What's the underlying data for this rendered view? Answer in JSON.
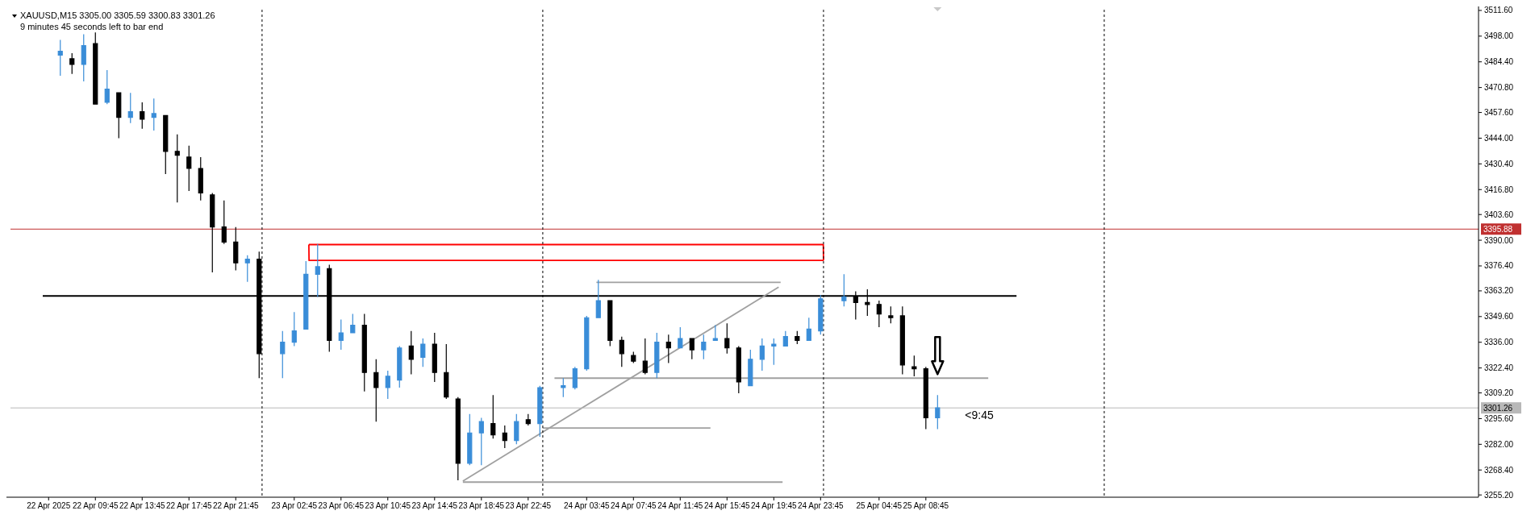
{
  "chart_data": {
    "type": "candlestick",
    "title": "XAUUSD,M15  3305.00 3305.59 3300.83 3301.26",
    "subtitle": "9 minutes 45 seconds left to bar end",
    "x": [
      "2025-04-22T06:45",
      "2025-04-22T07:45",
      "2025-04-22T08:45",
      "2025-04-22T09:45",
      "2025-04-22T10:45",
      "2025-04-22T11:45",
      "2025-04-22T12:45",
      "2025-04-22T13:45",
      "2025-04-22T14:45",
      "2025-04-22T15:45",
      "2025-04-22T16:45",
      "2025-04-22T17:45",
      "2025-04-22T18:45",
      "2025-04-22T19:45",
      "2025-04-22T20:45",
      "2025-04-22T21:45",
      "2025-04-22T22:45",
      "2025-04-22T23:45",
      "2025-04-23T01:45",
      "2025-04-23T02:45",
      "2025-04-23T03:45",
      "2025-04-23T04:45",
      "2025-04-23T05:45",
      "2025-04-23T06:45",
      "2025-04-23T07:45",
      "2025-04-23T08:45",
      "2025-04-23T09:45",
      "2025-04-23T10:45",
      "2025-04-23T11:45",
      "2025-04-23T12:45",
      "2025-04-23T13:45",
      "2025-04-23T14:45",
      "2025-04-23T15:45",
      "2025-04-23T16:45",
      "2025-04-23T17:45",
      "2025-04-23T18:45",
      "2025-04-23T19:45",
      "2025-04-23T20:45",
      "2025-04-23T21:45",
      "2025-04-23T22:45",
      "2025-04-23T23:45",
      "2025-04-24T01:45",
      "2025-04-24T02:45",
      "2025-04-24T03:45",
      "2025-04-24T04:45",
      "2025-04-24T05:45",
      "2025-04-24T06:45",
      "2025-04-24T07:45",
      "2025-04-24T08:45",
      "2025-04-24T09:45",
      "2025-04-24T10:45",
      "2025-04-24T11:45",
      "2025-04-24T12:45",
      "2025-04-24T13:45",
      "2025-04-24T14:45",
      "2025-04-24T15:45",
      "2025-04-24T16:45",
      "2025-04-24T17:45",
      "2025-04-24T18:45",
      "2025-04-24T19:45",
      "2025-04-24T20:45",
      "2025-04-24T21:45",
      "2025-04-24T22:45",
      "2025-04-24T23:45",
      "2025-04-25T01:45",
      "2025-04-25T02:45",
      "2025-04-25T03:45",
      "2025-04-25T04:45",
      "2025-04-25T05:45",
      "2025-04-25T06:45",
      "2025-04-25T07:45",
      "2025-04-25T08:45",
      "2025-04-25T09:45"
    ],
    "ohlc": [
      [
        3488,
        3496,
        3477,
        3490
      ],
      [
        3486,
        3489,
        3478,
        3483
      ],
      [
        3483,
        3499,
        3474,
        3493
      ],
      [
        3494,
        3500,
        3462,
        3462
      ],
      [
        3463,
        3480,
        3462,
        3470
      ],
      [
        3468,
        3468,
        3444,
        3455
      ],
      [
        3455,
        3468,
        3452,
        3458
      ],
      [
        3458,
        3463,
        3449,
        3454
      ],
      [
        3455,
        3465,
        3448,
        3457
      ],
      [
        3456,
        3456,
        3425,
        3437
      ],
      [
        3437,
        3446,
        3410,
        3435
      ],
      [
        3434,
        3440,
        3416,
        3428
      ],
      [
        3428,
        3434,
        3411,
        3415
      ],
      [
        3414,
        3415,
        3373,
        3397
      ],
      [
        3397,
        3411,
        3388,
        3389
      ],
      [
        3389,
        3397,
        3374,
        3378
      ],
      [
        3378,
        3382,
        3368,
        3380
      ],
      [
        3380,
        3384,
        3317,
        3330
      ],
      [
        3330,
        3342,
        3317,
        3336
      ],
      [
        3336,
        3352,
        3334,
        3342
      ],
      [
        3343,
        3379,
        3343,
        3372
      ],
      [
        3372,
        3388,
        3360,
        3376
      ],
      [
        3375,
        3377,
        3331,
        3337
      ],
      [
        3337,
        3348,
        3332,
        3341
      ],
      [
        3341,
        3351,
        3341,
        3345
      ],
      [
        3345,
        3351,
        3310,
        3320
      ],
      [
        3320,
        3327,
        3294,
        3312
      ],
      [
        3312,
        3321,
        3306,
        3318
      ],
      [
        3316,
        3334,
        3312,
        3333
      ],
      [
        3334,
        3342,
        3319,
        3327
      ],
      [
        3328,
        3338,
        3323,
        3335
      ],
      [
        3335,
        3341,
        3315,
        3320
      ],
      [
        3320,
        3335,
        3306,
        3307
      ],
      [
        3306,
        3307,
        3263,
        3272
      ],
      [
        3272,
        3298,
        3271,
        3288
      ],
      [
        3288,
        3296,
        3271,
        3294
      ],
      [
        3293,
        3308,
        3285,
        3287
      ],
      [
        3288,
        3292,
        3280,
        3284
      ],
      [
        3284,
        3298,
        3282,
        3294
      ],
      [
        3295,
        3298,
        3292,
        3293
      ],
      [
        3293,
        3313,
        3286,
        3312
      ],
      [
        3312,
        3317,
        3307,
        3313
      ],
      [
        3312,
        3323,
        3311,
        3322
      ],
      [
        3322,
        3350,
        3321,
        3349
      ],
      [
        3349,
        3369,
        3349,
        3358
      ],
      [
        3358,
        3358,
        3334,
        3337
      ],
      [
        3337,
        3339,
        3323,
        3330
      ],
      [
        3329,
        3331,
        3325,
        3326
      ],
      [
        3326,
        3338,
        3319,
        3320
      ],
      [
        3320,
        3341,
        3317,
        3336
      ],
      [
        3336,
        3340,
        3325,
        3333
      ],
      [
        3333,
        3344,
        3333,
        3338
      ],
      [
        3338,
        3338,
        3327,
        3332
      ],
      [
        3332,
        3340,
        3327,
        3336
      ],
      [
        3337,
        3345,
        3337,
        3338
      ],
      [
        3338,
        3346,
        3330,
        3333
      ],
      [
        3333,
        3334,
        3309,
        3315
      ],
      [
        3313,
        3332,
        3313,
        3327
      ],
      [
        3327,
        3338,
        3321,
        3334
      ],
      [
        3334,
        3338,
        3324,
        3335
      ],
      [
        3334,
        3342,
        3334,
        3339
      ],
      [
        3339,
        3342,
        3335,
        3337
      ],
      [
        3337,
        3349,
        3337,
        3343
      ],
      [
        3342,
        3361,
        3340,
        3359
      ],
      [
        3358,
        3372,
        3355,
        3360
      ],
      [
        3360,
        3363,
        3348,
        3357
      ],
      [
        3357,
        3364,
        3350,
        3356
      ],
      [
        3356,
        3358,
        3344,
        3351
      ],
      [
        3350,
        3355,
        3346,
        3349
      ],
      [
        3350,
        3355,
        3319,
        3324
      ],
      [
        3323,
        3329,
        3318,
        3322
      ],
      [
        3322,
        3323,
        3290,
        3296
      ],
      [
        3296,
        3308,
        3290,
        3301.26
      ]
    ],
    "colors": [
      "#3a8dd8",
      "#000000",
      "#3a8dd8",
      "#000000",
      "#3a8dd8",
      "#000000",
      "#3a8dd8",
      "#000000",
      "#3a8dd8",
      "#000000",
      "#000000",
      "#000000",
      "#000000",
      "#000000",
      "#000000",
      "#000000",
      "#3a8dd8",
      "#000000",
      "#3a8dd8",
      "#3a8dd8",
      "#3a8dd8",
      "#3a8dd8",
      "#000000",
      "#3a8dd8",
      "#3a8dd8",
      "#000000",
      "#000000",
      "#3a8dd8",
      "#3a8dd8",
      "#000000",
      "#3a8dd8",
      "#000000",
      "#000000",
      "#000000",
      "#3a8dd8",
      "#3a8dd8",
      "#000000",
      "#000000",
      "#3a8dd8",
      "#000000",
      "#3a8dd8",
      "#3a8dd8",
      "#3a8dd8",
      "#3a8dd8",
      "#3a8dd8",
      "#000000",
      "#000000",
      "#000000",
      "#000000",
      "#3a8dd8",
      "#000000",
      "#3a8dd8",
      "#000000",
      "#3a8dd8",
      "#3a8dd8",
      "#000000",
      "#000000",
      "#3a8dd8",
      "#3a8dd8",
      "#3a8dd8",
      "#3a8dd8",
      "#000000",
      "#3a8dd8",
      "#3a8dd8",
      "#3a8dd8",
      "#000000",
      "#000000",
      "#000000",
      "#000000",
      "#000000",
      "#000000",
      "#000000",
      "#3a8dd8"
    ],
    "series": [
      {
        "type": "line",
        "color": "#000000",
        "x": [
          "2025-04-22T05:15",
          "2025-04-25T16:30"
        ],
        "values": [
          3360.5,
          3360.5
        ]
      },
      {
        "type": "line",
        "color": "#ff0000",
        "x": [
          "2025-04-23T04:00",
          "2025-04-24T23:59",
          "2025-04-25T00:00"
        ],
        "values": [
          3387.7,
          3387.7,
          3379.3
        ]
      },
      {
        "type": "line",
        "color": "#ff0000",
        "x": [
          "2025-04-23T04:00",
          "2025-04-23T04:01",
          "2025-04-25T00:00"
        ],
        "values": [
          3387.7,
          3379.3,
          3379.3
        ]
      },
      {
        "type": "line",
        "color": "#a0a0a0",
        "x": [
          "2025-04-23T17:10",
          "2025-04-24T20:10"
        ],
        "values": [
          3262.5,
          3365.2
        ]
      },
      {
        "type": "line",
        "color": "#a0a0a0",
        "x": [
          "2025-04-24T04:35",
          "2025-04-24T20:20"
        ],
        "values": [
          3367.7,
          3367.7
        ]
      },
      {
        "type": "line",
        "color": "#a0a0a0",
        "x": [
          "2025-04-24T01:00",
          "2025-04-25T14:05"
        ],
        "values": [
          3317,
          3317
        ]
      },
      {
        "type": "line",
        "color": "#a0a0a0",
        "x": [
          "2025-04-23T23:59",
          "2025-04-24T14:20"
        ],
        "values": [
          3290.6,
          3290.6
        ]
      },
      {
        "type": "line",
        "color": "#a0a0a0",
        "x": [
          "2025-04-23T17:10",
          "2025-04-24T20:30"
        ],
        "values": [
          3262,
          3262
        ]
      }
    ],
    "xlim": [
      "2025-04-22T05:15",
      "2025-04-27T08:00"
    ],
    "xticks": [
      {
        "value": "2025-04-22T05:45",
        "label": "22 Apr 2025"
      },
      {
        "value": "2025-04-22T09:45",
        "label": "22 Apr 09:45"
      },
      {
        "value": "2025-04-22T13:45",
        "label": "22 Apr 13:45"
      },
      {
        "value": "2025-04-22T17:45",
        "label": "22 Apr 17:45"
      },
      {
        "value": "2025-04-22T21:45",
        "label": "22 Apr 21:45"
      },
      {
        "value": "2025-04-23T02:45",
        "label": "23 Apr 02:45"
      },
      {
        "value": "2025-04-23T06:45",
        "label": "23 Apr 06:45"
      },
      {
        "value": "2025-04-23T10:45",
        "label": "23 Apr 10:45"
      },
      {
        "value": "2025-04-23T14:45",
        "label": "23 Apr 14:45"
      },
      {
        "value": "2025-04-23T18:45",
        "label": "23 Apr 18:45"
      },
      {
        "value": "2025-04-23T22:45",
        "label": "23 Apr 22:45"
      },
      {
        "value": "2025-04-24T03:45",
        "label": "24 Apr 03:45"
      },
      {
        "value": "2025-04-24T07:45",
        "label": "24 Apr 07:45"
      },
      {
        "value": "2025-04-24T11:45",
        "label": "24 Apr 11:45"
      },
      {
        "value": "2025-04-24T15:45",
        "label": "24 Apr 15:45"
      },
      {
        "value": "2025-04-24T19:45",
        "label": "24 Apr 19:45"
      },
      {
        "value": "2025-04-24T23:45",
        "label": "24 Apr 23:45"
      },
      {
        "value": "2025-04-25T04:45",
        "label": "25 Apr 04:45"
      },
      {
        "value": "2025-04-25T08:45",
        "label": "25 Apr 08:45"
      }
    ],
    "ylim": [
      3254,
      3512
    ],
    "yticks": [
      {
        "value": 3511.6,
        "label": "3511.60"
      },
      {
        "value": 3498,
        "label": "3498.00"
      },
      {
        "value": 3484.4,
        "label": "3484.40"
      },
      {
        "value": 3470.8,
        "label": "3470.80"
      },
      {
        "value": 3457.6,
        "label": "3457.60"
      },
      {
        "value": 3444,
        "label": "3444.00"
      },
      {
        "value": 3430.4,
        "label": "3430.40"
      },
      {
        "value": 3416.8,
        "label": "3416.80"
      },
      {
        "value": 3403.6,
        "label": "3403.60"
      },
      {
        "value": 3390,
        "label": "3390.00"
      },
      {
        "value": 3376.4,
        "label": "3376.40"
      },
      {
        "value": 3363.2,
        "label": "3363.20"
      },
      {
        "value": 3349.6,
        "label": "3349.60"
      },
      {
        "value": 3336,
        "label": "3336.00"
      },
      {
        "value": 3322.4,
        "label": "3322.40"
      },
      {
        "value": 3309.2,
        "label": "3309.20"
      },
      {
        "value": 3295.6,
        "label": "3295.60"
      },
      {
        "value": 3282,
        "label": "3282.00"
      },
      {
        "value": 3268.4,
        "label": "3268.40"
      },
      {
        "value": 3255.2,
        "label": "3255.20"
      }
    ],
    "ref_lines": [
      {
        "axis": "y",
        "value": 3395.88,
        "label": "3395.88",
        "color": "#c03030"
      },
      {
        "axis": "y",
        "value": 3301.26,
        "label": "3301.26",
        "color": "#b8b8b8"
      },
      {
        "axis": "x",
        "value": "2025-04-23T00:00",
        "color": "#000000",
        "line_style": "dashed"
      },
      {
        "axis": "x",
        "value": "2025-04-24T00:00",
        "color": "#000000",
        "line_style": "dashed"
      },
      {
        "axis": "x",
        "value": "2025-04-25T00:00",
        "color": "#000000",
        "line_style": "dashed"
      },
      {
        "axis": "x",
        "value": "2025-04-26T00:00",
        "color": "#000000",
        "line_style": "dashed"
      }
    ],
    "annotations": [
      "<9:45"
    ]
  }
}
